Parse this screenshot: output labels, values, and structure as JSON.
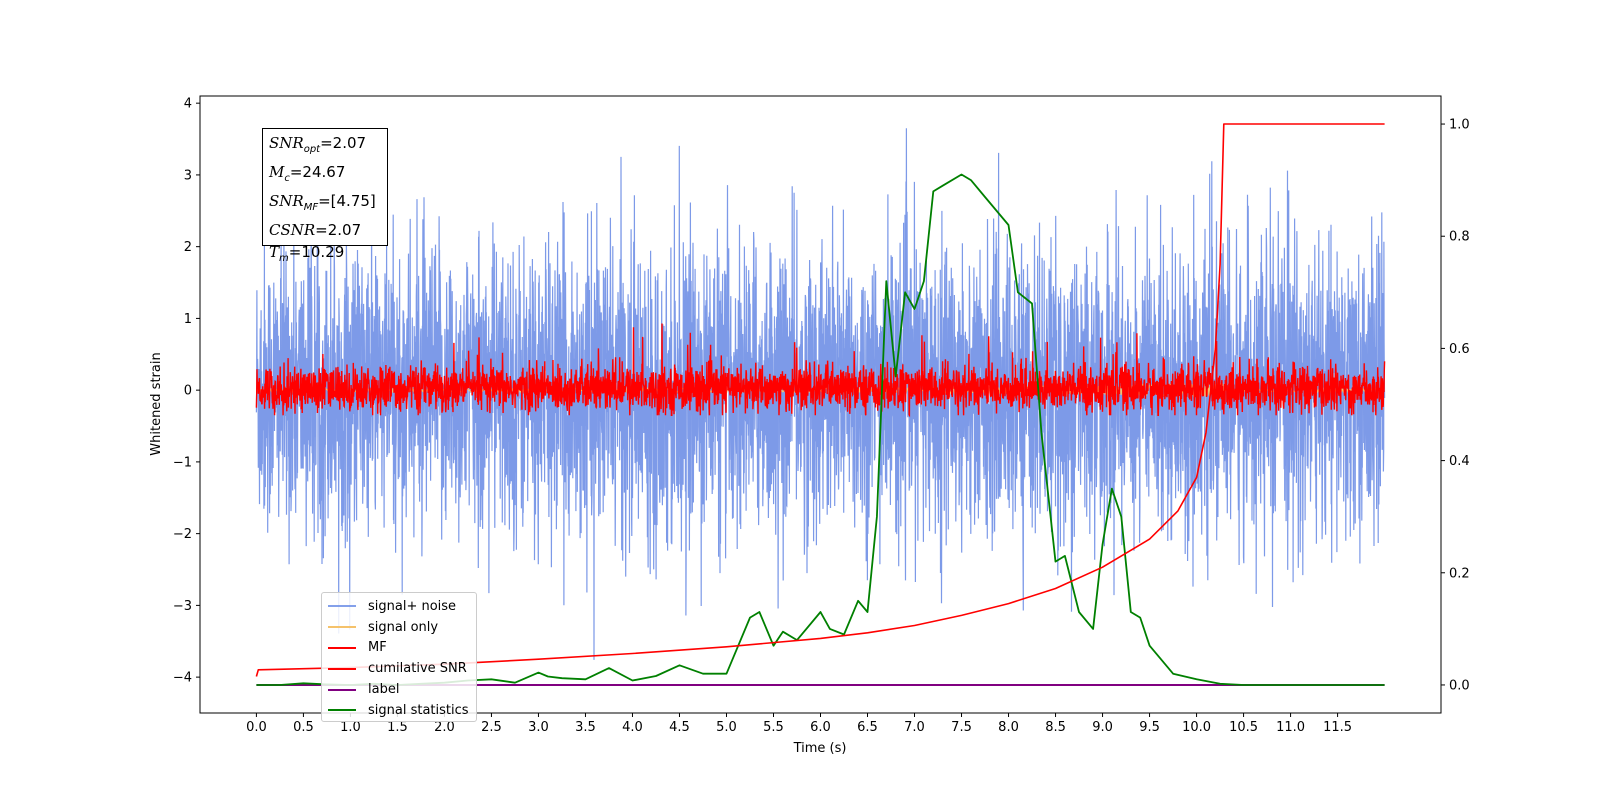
{
  "chart_data": {
    "type": "line",
    "xlabel": "Time (s)",
    "ylabel": "Whitened strain",
    "x_ticks": [
      "0.0",
      "0.5",
      "1.0",
      "1.5",
      "2.0",
      "2.5",
      "3.0",
      "3.5",
      "4.0",
      "4.5",
      "5.0",
      "5.5",
      "6.0",
      "6.5",
      "7.0",
      "7.5",
      "8.0",
      "8.5",
      "9.0",
      "9.5",
      "10.0",
      "10.5",
      "11.0",
      "11.5"
    ],
    "xlim": [
      -0.6,
      12.6
    ],
    "y_left": {
      "lim": [
        -4.5,
        4.1
      ],
      "ticks": [
        "4",
        "3",
        "2",
        "1",
        "0",
        "−1",
        "−2",
        "−3",
        "−4"
      ]
    },
    "y_right": {
      "lim": [
        -0.05,
        1.05
      ],
      "ticks": [
        "1.0",
        "0.8",
        "0.6",
        "0.4",
        "0.2",
        "0.0"
      ]
    },
    "annotation": {
      "snr_opt": "=2.07",
      "mc": "=24.67",
      "snr_mf": "=[4.75]",
      "csnr": "=2.07",
      "tm": "=10.29"
    },
    "legend_position": "lower-left",
    "series": [
      {
        "name": "signal+ noise",
        "color": "#6f8fe6",
        "axis": "left",
        "description_values": {
          "x_range": [
            0.0,
            12.0
          ],
          "typical_range": [
            -2.5,
            2.5
          ],
          "max": 3.65,
          "min": -4.0
        }
      },
      {
        "name": "signal only",
        "color": "#f5c26b",
        "axis": "left",
        "description_values": {
          "x_range": [
            0.0,
            12.0
          ],
          "typical_range": [
            -0.1,
            0.1
          ]
        }
      },
      {
        "name": "MF",
        "color": "#ff0000",
        "axis": "left",
        "description_values": {
          "x_range": [
            0.0,
            12.0
          ],
          "typical_range": [
            -0.35,
            0.4
          ],
          "max": 1.05
        }
      },
      {
        "name": "cumilative SNR",
        "color": "#ff0000",
        "axis": "right",
        "x": [
          0.0,
          0.02,
          1.0,
          2.0,
          3.0,
          4.0,
          5.0,
          6.0,
          6.5,
          7.0,
          7.5,
          8.0,
          8.5,
          9.0,
          9.5,
          9.8,
          10.0,
          10.1,
          10.2,
          10.25,
          10.29,
          12.0
        ],
        "values": [
          0.015,
          0.027,
          0.031,
          0.037,
          0.046,
          0.056,
          0.068,
          0.083,
          0.093,
          0.106,
          0.124,
          0.145,
          0.172,
          0.21,
          0.26,
          0.31,
          0.37,
          0.45,
          0.6,
          0.75,
          1.0,
          1.0
        ]
      },
      {
        "name": "label",
        "color": "#800080",
        "axis": "right",
        "x": [
          0.0,
          12.0
        ],
        "values": [
          0.0,
          0.0
        ]
      },
      {
        "name": "signal statistics",
        "color": "#008000",
        "axis": "right",
        "x": [
          0.0,
          0.25,
          0.5,
          0.75,
          1.0,
          1.25,
          1.5,
          1.75,
          2.0,
          2.25,
          2.5,
          2.75,
          3.0,
          3.1,
          3.25,
          3.5,
          3.75,
          4.0,
          4.25,
          4.5,
          4.75,
          5.0,
          5.25,
          5.35,
          5.5,
          5.6,
          5.75,
          6.0,
          6.1,
          6.25,
          6.4,
          6.5,
          6.6,
          6.7,
          6.8,
          6.9,
          7.0,
          7.1,
          7.2,
          7.3,
          7.5,
          7.6,
          7.75,
          8.0,
          8.1,
          8.25,
          8.35,
          8.5,
          8.6,
          8.75,
          8.9,
          9.0,
          9.1,
          9.2,
          9.3,
          9.4,
          9.5,
          9.75,
          10.0,
          10.25,
          10.5,
          11.0,
          11.5,
          12.0
        ],
        "values": [
          0.0,
          0.0,
          0.003,
          0.001,
          0.0,
          0.002,
          0.0,
          0.002,
          0.004,
          0.008,
          0.01,
          0.004,
          0.022,
          0.015,
          0.012,
          0.01,
          0.03,
          0.008,
          0.016,
          0.035,
          0.02,
          0.02,
          0.12,
          0.13,
          0.07,
          0.095,
          0.08,
          0.13,
          0.1,
          0.09,
          0.15,
          0.13,
          0.3,
          0.72,
          0.55,
          0.7,
          0.67,
          0.72,
          0.88,
          0.89,
          0.91,
          0.9,
          0.87,
          0.82,
          0.7,
          0.68,
          0.45,
          0.22,
          0.23,
          0.13,
          0.1,
          0.25,
          0.35,
          0.3,
          0.13,
          0.12,
          0.07,
          0.02,
          0.01,
          0.002,
          0.0,
          0.0,
          0.0,
          0.0
        ]
      }
    ]
  }
}
